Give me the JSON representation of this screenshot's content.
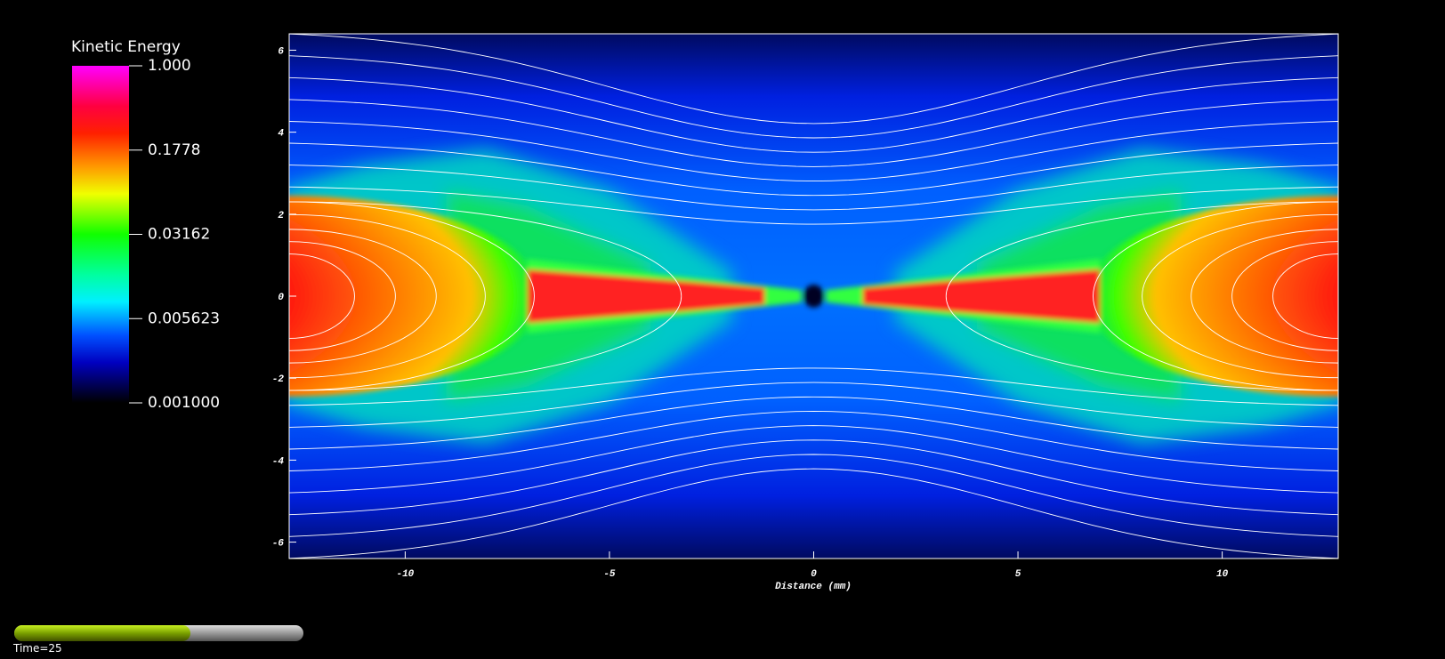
{
  "chart_data": {
    "type": "heatmap",
    "xlabel": "Distance (mm)",
    "xlim": [
      -12.84,
      12.84
    ],
    "ylim": [
      -6.4,
      6.4
    ],
    "xticks": [
      -10,
      -5,
      0,
      5,
      10
    ],
    "yticks": [
      -6,
      -4,
      -2,
      0,
      2,
      4,
      6
    ],
    "colorbar": {
      "title": "Kinetic Energy",
      "log": true,
      "lim": [
        0.001,
        1
      ],
      "ticks": [
        {
          "value": 1,
          "label": "1.000"
        },
        {
          "value": 0.1778,
          "label": "0.1778"
        },
        {
          "value": 0.03162,
          "label": "0.03162"
        },
        {
          "value": 0.005623,
          "label": "0.005623"
        },
        {
          "value": 0.001,
          "label": "0.001000"
        }
      ]
    },
    "time_label": "Time=25"
  }
}
